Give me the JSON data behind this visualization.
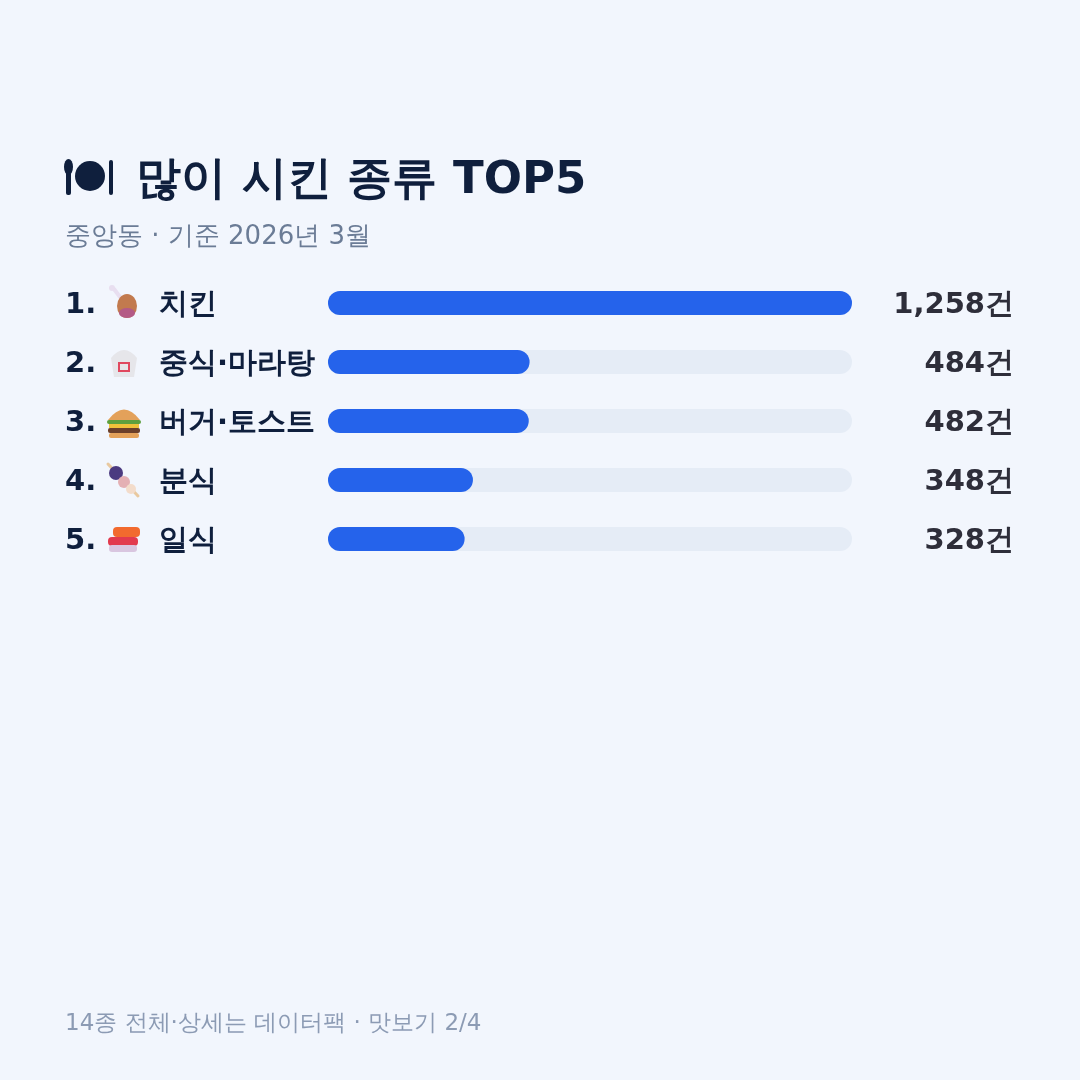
{
  "chart_data": {
    "type": "bar",
    "orientation": "horizontal",
    "title": "많이 시킨 종류 TOP5",
    "subtitle": "중앙동 · 기준 2026년 3월",
    "categories": [
      "1. 치킨",
      "2. 중식·마라탕",
      "3. 버거·토스트",
      "4. 분식",
      "5. 일식"
    ],
    "values": [
      1258,
      484,
      482,
      348,
      328
    ],
    "value_labels": [
      "1,258건",
      "484건",
      "482건",
      "348건",
      "328건"
    ],
    "color": "#2563eb",
    "annotations": [
      "14종 전체·상세는 데이터팩 · 맛보기 2/4"
    ]
  }
}
